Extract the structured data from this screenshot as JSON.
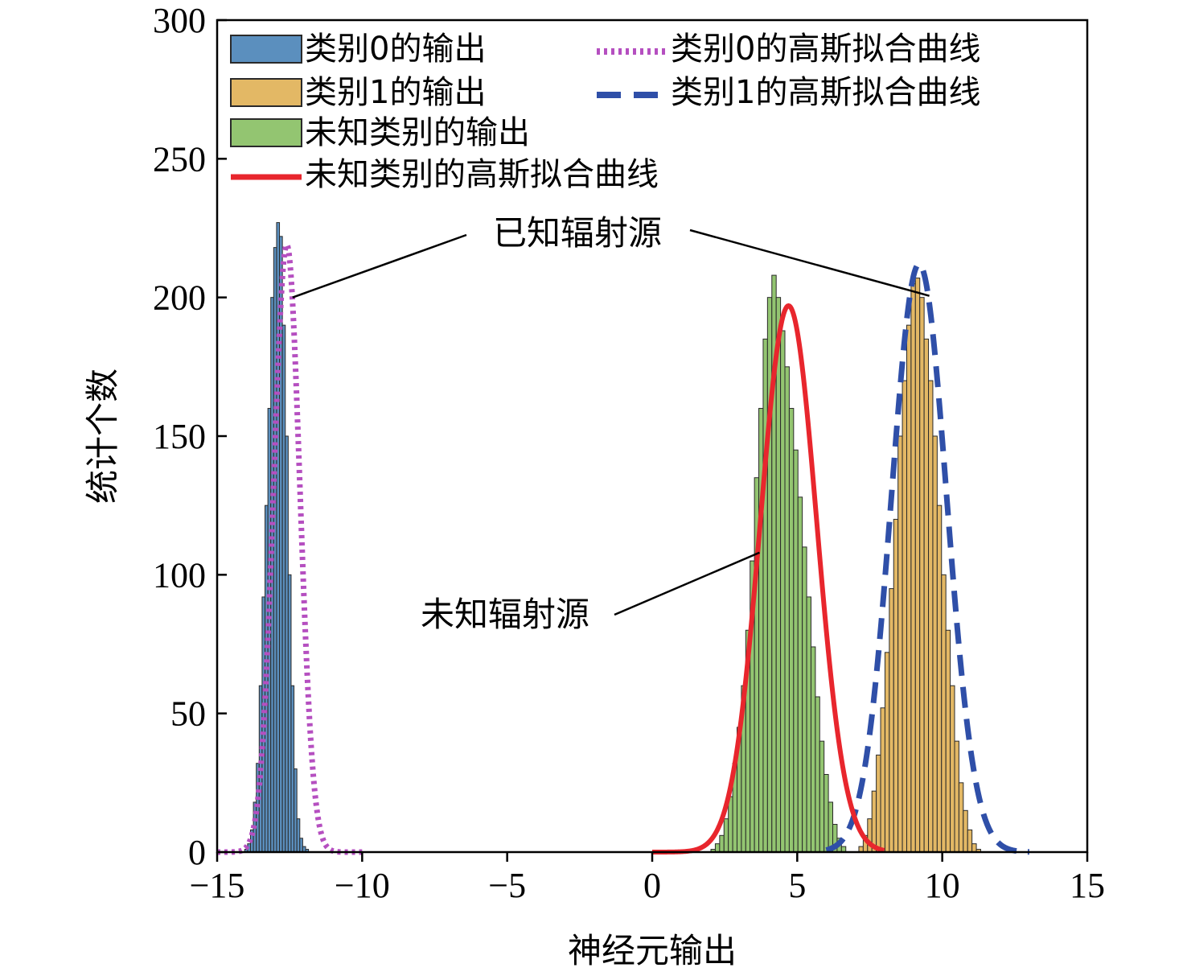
{
  "chart_data": {
    "type": "bar",
    "xlabel": "神经元输出",
    "ylabel": "统计个数",
    "xlim": [
      -15,
      15
    ],
    "ylim": [
      0,
      300
    ],
    "xticks": [
      -15,
      -10,
      -5,
      0,
      5,
      10,
      15
    ],
    "yticks": [
      0,
      50,
      100,
      150,
      200,
      250,
      300
    ],
    "xtick_labels": [
      "−15",
      "−10",
      "−5",
      "0",
      "5",
      "10",
      "15"
    ],
    "ytick_labels": [
      "0",
      "50",
      "100",
      "150",
      "200",
      "250",
      "300"
    ],
    "grid": false,
    "legend_position": "top-left",
    "colors": {
      "class0_bar": "#5b8fbe",
      "class1_bar": "#e3b865",
      "unknown_bar": "#93c571",
      "class0_fit": "#b54fc0",
      "class1_fit": "#2f4fa8",
      "unknown_fit": "#e8262d",
      "bar_edge": "#2a2a2a"
    },
    "histograms": [
      {
        "name": "类别0的输出",
        "color_key": "class0_bar",
        "bin_width": 0.1,
        "bin_centers": [
          -14.0,
          -13.9,
          -13.8,
          -13.7,
          -13.6,
          -13.5,
          -13.4,
          -13.3,
          -13.2,
          -13.1,
          -13.0,
          -12.9,
          -12.8,
          -12.7,
          -12.6,
          -12.5,
          -12.4,
          -12.3,
          -12.2,
          -12.1,
          -12.0,
          -11.9,
          -11.8
        ],
        "counts": [
          1,
          3,
          8,
          18,
          32,
          60,
          92,
          125,
          160,
          200,
          218,
          227,
          222,
          190,
          150,
          100,
          60,
          30,
          12,
          5,
          2,
          1,
          0
        ]
      },
      {
        "name": "类别1的输出",
        "color_key": "class1_bar",
        "bin_width": 0.15,
        "bin_centers": [
          7.2,
          7.35,
          7.5,
          7.65,
          7.8,
          7.95,
          8.1,
          8.25,
          8.4,
          8.55,
          8.7,
          8.85,
          9.0,
          9.15,
          9.3,
          9.45,
          9.6,
          9.75,
          9.9,
          10.05,
          10.2,
          10.35,
          10.5,
          10.65,
          10.8,
          10.95,
          11.1,
          11.25,
          11.4
        ],
        "counts": [
          2,
          6,
          12,
          22,
          35,
          52,
          72,
          95,
          120,
          150,
          170,
          190,
          205,
          207,
          200,
          185,
          170,
          150,
          125,
          100,
          80,
          60,
          40,
          25,
          15,
          8,
          3,
          1,
          0
        ]
      },
      {
        "name": "未知类别的输出",
        "color_key": "unknown_bar",
        "bin_width": 0.15,
        "bin_centers": [
          2.1,
          2.25,
          2.4,
          2.55,
          2.7,
          2.85,
          3.0,
          3.15,
          3.3,
          3.45,
          3.6,
          3.75,
          3.9,
          4.05,
          4.2,
          4.35,
          4.5,
          4.65,
          4.8,
          4.95,
          5.1,
          5.25,
          5.4,
          5.55,
          5.7,
          5.85,
          6.0,
          6.15,
          6.3,
          6.45,
          6.6
        ],
        "counts": [
          1,
          3,
          6,
          12,
          20,
          32,
          45,
          60,
          80,
          105,
          135,
          160,
          185,
          200,
          208,
          200,
          188,
          175,
          160,
          145,
          128,
          110,
          92,
          74,
          56,
          40,
          28,
          18,
          10,
          5,
          2
        ]
      }
    ],
    "fits": [
      {
        "name": "类别0的高斯拟合曲线",
        "color_key": "class0_fit",
        "style": "dotted",
        "mu": -12.6,
        "sigma": 0.45,
        "peak": 219,
        "x_range": [
          -15,
          -10
        ]
      },
      {
        "name": "类别1的高斯拟合曲线",
        "color_key": "class1_fit",
        "style": "dashed",
        "mu": 9.2,
        "sigma": 0.95,
        "peak": 212,
        "x_range": [
          6,
          13
        ]
      },
      {
        "name": "未知类别的高斯拟合曲线",
        "color_key": "unknown_fit",
        "style": "solid",
        "mu": 4.7,
        "sigma": 0.97,
        "peak": 197,
        "x_range": [
          0,
          8
        ]
      }
    ],
    "legend": {
      "items": [
        {
          "label": "类别0的输出",
          "kind": "patch",
          "color_key": "class0_bar"
        },
        {
          "label": "类别1的输出",
          "kind": "patch",
          "color_key": "class1_bar"
        },
        {
          "label": "未知类别的输出",
          "kind": "patch",
          "color_key": "unknown_bar"
        },
        {
          "label": "未知类别的高斯拟合曲线",
          "kind": "line",
          "color_key": "unknown_fit",
          "style": "solid"
        },
        {
          "label": "类别0的高斯拟合曲线",
          "kind": "line",
          "color_key": "class0_fit",
          "style": "dotted"
        },
        {
          "label": "类别1的高斯拟合曲线",
          "kind": "line",
          "color_key": "class1_fit",
          "style": "dashed"
        }
      ]
    },
    "annotations": [
      {
        "text": "已知辐射源",
        "targets": [
          [
            -12.4,
            200
          ],
          [
            9.0,
            200
          ]
        ]
      },
      {
        "text": "未知辐射源",
        "targets": [
          [
            3.7,
            108
          ]
        ]
      }
    ]
  }
}
